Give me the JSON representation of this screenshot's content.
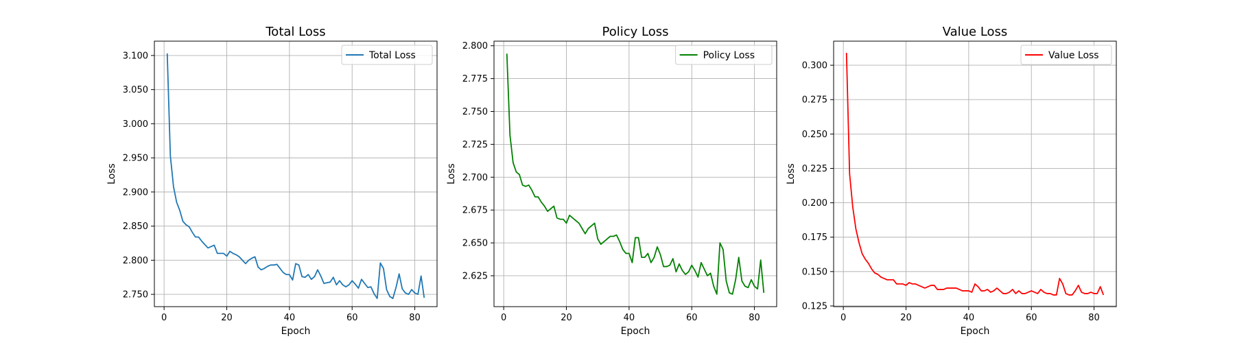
{
  "chart_data": [
    {
      "type": "line",
      "title": "Total Loss",
      "xlabel": "Epoch",
      "ylabel": "Loss",
      "xlim": [
        -3.1,
        87.1
      ],
      "ylim": [
        2.732,
        3.121
      ],
      "xticks": [
        0,
        20,
        40,
        60,
        80
      ],
      "yticks": [
        2.75,
        2.8,
        2.85,
        2.9,
        2.95,
        3.0,
        3.05,
        3.1
      ],
      "grid": true,
      "legend_position": "top-right",
      "series": [
        {
          "name": "Total Loss",
          "color": "#1f77b4",
          "x": [
            1,
            2,
            3,
            4,
            5,
            6,
            7,
            8,
            9,
            10,
            11,
            12,
            13,
            14,
            15,
            16,
            17,
            18,
            19,
            20,
            21,
            22,
            23,
            24,
            25,
            26,
            27,
            28,
            29,
            30,
            31,
            32,
            33,
            34,
            35,
            36,
            37,
            38,
            39,
            40,
            41,
            42,
            43,
            44,
            45,
            46,
            47,
            48,
            49,
            50,
            51,
            52,
            53,
            54,
            55,
            56,
            57,
            58,
            59,
            60,
            61,
            62,
            63,
            64,
            65,
            66,
            67,
            68,
            69,
            70,
            71,
            72,
            73,
            74,
            75,
            76,
            77,
            78,
            79,
            80,
            81,
            82,
            83
          ],
          "values": [
            3.103,
            2.953,
            2.908,
            2.885,
            2.873,
            2.857,
            2.852,
            2.849,
            2.841,
            2.834,
            2.834,
            2.828,
            2.823,
            2.818,
            2.82,
            2.822,
            2.81,
            2.81,
            2.81,
            2.806,
            2.813,
            2.81,
            2.808,
            2.805,
            2.8,
            2.795,
            2.8,
            2.803,
            2.805,
            2.79,
            2.786,
            2.788,
            2.791,
            2.793,
            2.793,
            2.794,
            2.788,
            2.782,
            2.779,
            2.779,
            2.771,
            2.795,
            2.793,
            2.776,
            2.775,
            2.779,
            2.772,
            2.776,
            2.786,
            2.777,
            2.766,
            2.767,
            2.768,
            2.775,
            2.764,
            2.77,
            2.764,
            2.761,
            2.764,
            2.77,
            2.765,
            2.759,
            2.772,
            2.766,
            2.76,
            2.761,
            2.751,
            2.744,
            2.796,
            2.788,
            2.757,
            2.747,
            2.744,
            2.76,
            2.78,
            2.758,
            2.752,
            2.75,
            2.757,
            2.752,
            2.75,
            2.777,
            2.745
          ]
        }
      ]
    },
    {
      "type": "line",
      "title": "Policy Loss",
      "xlabel": "Epoch",
      "ylabel": "Loss",
      "xlim": [
        -3.1,
        87.1
      ],
      "ylim": [
        2.6015,
        2.8035
      ],
      "xticks": [
        0,
        20,
        40,
        60,
        80
      ],
      "yticks": [
        2.625,
        2.65,
        2.675,
        2.7,
        2.725,
        2.75,
        2.775,
        2.8
      ],
      "grid": true,
      "legend_position": "top-right",
      "series": [
        {
          "name": "Policy Loss",
          "color": "#008000",
          "x": [
            1,
            2,
            3,
            4,
            5,
            6,
            7,
            8,
            9,
            10,
            11,
            12,
            13,
            14,
            15,
            16,
            17,
            18,
            19,
            20,
            21,
            22,
            23,
            24,
            25,
            26,
            27,
            28,
            29,
            30,
            31,
            32,
            33,
            34,
            35,
            36,
            37,
            38,
            39,
            40,
            41,
            42,
            43,
            44,
            45,
            46,
            47,
            48,
            49,
            50,
            51,
            52,
            53,
            54,
            55,
            56,
            57,
            58,
            59,
            60,
            61,
            62,
            63,
            64,
            65,
            66,
            67,
            68,
            69,
            70,
            71,
            72,
            73,
            74,
            75,
            76,
            77,
            78,
            79,
            80,
            81,
            82,
            83
          ],
          "values": [
            2.794,
            2.732,
            2.711,
            2.704,
            2.702,
            2.694,
            2.693,
            2.694,
            2.69,
            2.685,
            2.685,
            2.681,
            2.678,
            2.674,
            2.676,
            2.678,
            2.669,
            2.668,
            2.668,
            2.665,
            2.671,
            2.669,
            2.667,
            2.665,
            2.661,
            2.657,
            2.661,
            2.663,
            2.665,
            2.653,
            2.649,
            2.651,
            2.653,
            2.655,
            2.655,
            2.656,
            2.651,
            2.645,
            2.642,
            2.642,
            2.635,
            2.654,
            2.654,
            2.639,
            2.639,
            2.642,
            2.635,
            2.639,
            2.647,
            2.641,
            2.632,
            2.632,
            2.633,
            2.638,
            2.628,
            2.634,
            2.629,
            2.626,
            2.628,
            2.633,
            2.629,
            2.624,
            2.635,
            2.63,
            2.625,
            2.627,
            2.617,
            2.611,
            2.65,
            2.645,
            2.621,
            2.612,
            2.611,
            2.622,
            2.639,
            2.621,
            2.617,
            2.616,
            2.622,
            2.617,
            2.615,
            2.637,
            2.612
          ]
        }
      ]
    },
    {
      "type": "line",
      "title": "Value Loss",
      "xlabel": "Epoch",
      "ylabel": "Loss",
      "xlim": [
        -3.1,
        87.1
      ],
      "ylim": [
        0.1245,
        0.3175
      ],
      "xticks": [
        0,
        20,
        40,
        60,
        80
      ],
      "yticks": [
        0.125,
        0.15,
        0.175,
        0.2,
        0.225,
        0.25,
        0.275,
        0.3
      ],
      "grid": true,
      "legend_position": "top-right",
      "series": [
        {
          "name": "Value Loss",
          "color": "#ff0000",
          "x": [
            1,
            2,
            3,
            4,
            5,
            6,
            7,
            8,
            9,
            10,
            11,
            12,
            13,
            14,
            15,
            16,
            17,
            18,
            19,
            20,
            21,
            22,
            23,
            24,
            25,
            26,
            27,
            28,
            29,
            30,
            31,
            32,
            33,
            34,
            35,
            36,
            37,
            38,
            39,
            40,
            41,
            42,
            43,
            44,
            45,
            46,
            47,
            48,
            49,
            50,
            51,
            52,
            53,
            54,
            55,
            56,
            57,
            58,
            59,
            60,
            61,
            62,
            63,
            64,
            65,
            66,
            67,
            68,
            69,
            70,
            71,
            72,
            73,
            74,
            75,
            76,
            77,
            78,
            79,
            80,
            81,
            82,
            83
          ],
          "values": [
            0.309,
            0.221,
            0.197,
            0.181,
            0.171,
            0.163,
            0.159,
            0.156,
            0.152,
            0.149,
            0.148,
            0.146,
            0.145,
            0.144,
            0.144,
            0.144,
            0.141,
            0.141,
            0.141,
            0.14,
            0.142,
            0.141,
            0.141,
            0.14,
            0.139,
            0.138,
            0.139,
            0.14,
            0.14,
            0.137,
            0.137,
            0.137,
            0.138,
            0.138,
            0.138,
            0.138,
            0.137,
            0.136,
            0.136,
            0.136,
            0.135,
            0.141,
            0.139,
            0.136,
            0.136,
            0.137,
            0.135,
            0.136,
            0.138,
            0.136,
            0.134,
            0.134,
            0.135,
            0.137,
            0.134,
            0.136,
            0.134,
            0.134,
            0.135,
            0.136,
            0.135,
            0.134,
            0.137,
            0.135,
            0.134,
            0.134,
            0.133,
            0.133,
            0.145,
            0.141,
            0.134,
            0.133,
            0.133,
            0.136,
            0.14,
            0.135,
            0.134,
            0.134,
            0.135,
            0.134,
            0.134,
            0.139,
            0.133
          ]
        }
      ]
    }
  ]
}
